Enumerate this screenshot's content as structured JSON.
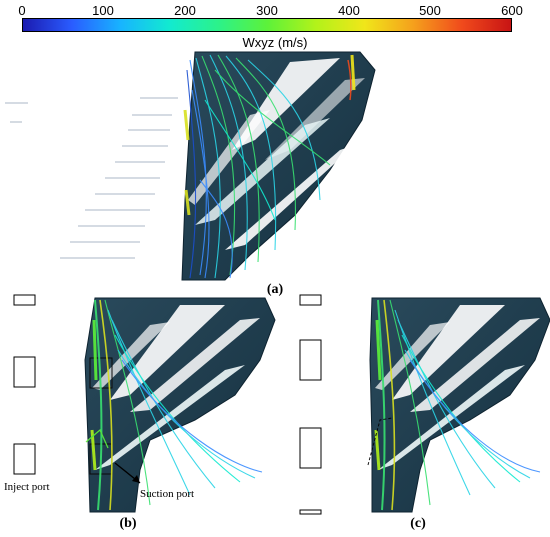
{
  "colorbar": {
    "title": "Wxyz (m/s)",
    "ticks": [
      "0",
      "100",
      "200",
      "300",
      "400",
      "500",
      "600"
    ],
    "colors": [
      "#1b1bb0",
      "#2a5cff",
      "#18b4ff",
      "#12ead0",
      "#2cf28a",
      "#5cf23a",
      "#b2f21a",
      "#f0e61a",
      "#f5a01c",
      "#f04a1c",
      "#c81414"
    ]
  },
  "panels": {
    "a": {
      "label": "(a)"
    },
    "b": {
      "label": "(b)",
      "inject_port_label": "Inject port",
      "suction_port_label": "Suction port"
    },
    "c": {
      "label": "(c)"
    }
  },
  "colors": {
    "blade": "#1e3a4a",
    "blade_edge": "#0e2330",
    "streamline_green": "#38e070",
    "streamline_cyan": "#2ad4e6",
    "streamline_blue": "#3a8cff",
    "streamline_yellow": "#d8e020"
  }
}
